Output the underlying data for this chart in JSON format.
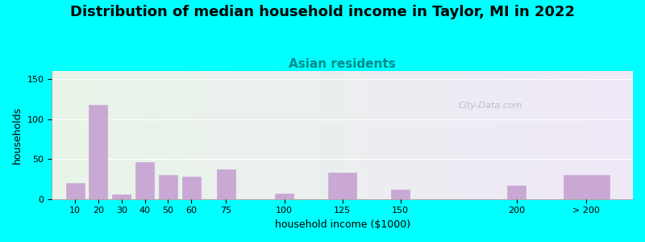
{
  "title": "Distribution of median household income in Taylor, MI in 2022",
  "subtitle": "Asian residents",
  "xlabel": "household income ($1000)",
  "ylabel": "households",
  "title_fontsize": 13,
  "subtitle_fontsize": 11,
  "subtitle_color": "#008B8B",
  "ylabel_fontsize": 9,
  "xlabel_fontsize": 9,
  "background_color": "#00FFFF",
  "bar_color": "#c9a8d4",
  "watermark": "City-Data.com",
  "ylim": [
    0,
    160
  ],
  "yticks": [
    0,
    50,
    100,
    150
  ],
  "categories": [
    "10",
    "20",
    "30",
    "40",
    "50",
    "60",
    "75",
    "100",
    "125",
    "150",
    "200",
    "> 200"
  ],
  "values": [
    20,
    118,
    6,
    46,
    30,
    28,
    37,
    7,
    33,
    12,
    17,
    30
  ],
  "bar_positions": [
    10,
    20,
    30,
    40,
    50,
    60,
    75,
    100,
    125,
    150,
    200,
    230
  ],
  "bar_widths": [
    8,
    8,
    8,
    8,
    8,
    8,
    8,
    8,
    12,
    8,
    8,
    20
  ]
}
